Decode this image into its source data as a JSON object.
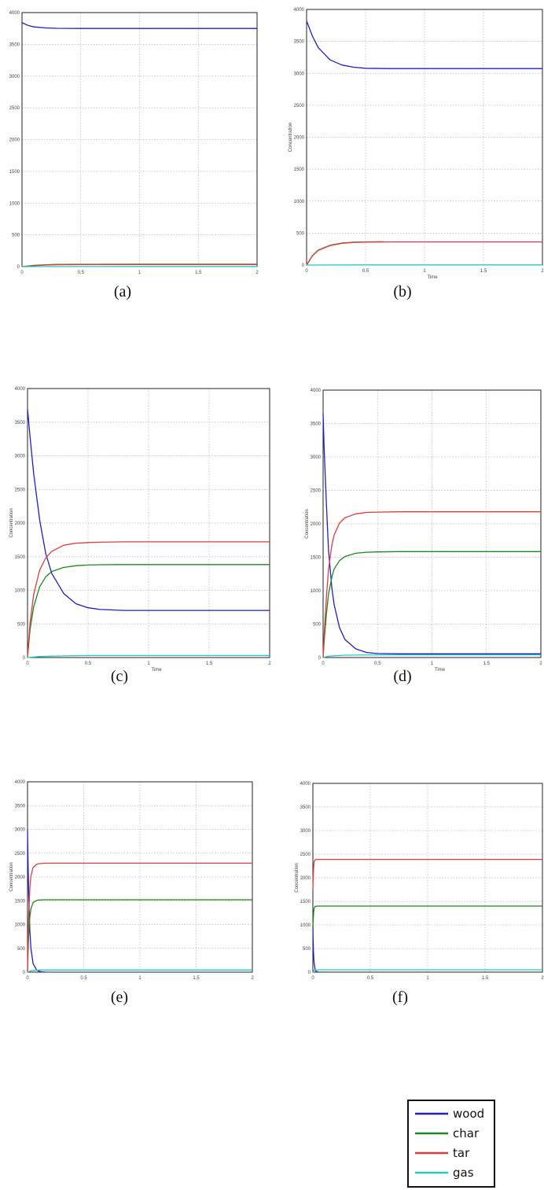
{
  "legend": [
    {
      "name": "wood",
      "color": "#1f1fc8"
    },
    {
      "name": "char",
      "color": "#1a8a1a"
    },
    {
      "name": "tar",
      "color": "#e03c3c"
    },
    {
      "name": "gas",
      "color": "#25c7c7"
    }
  ],
  "chart_data": [
    {
      "type": "line",
      "panel_label": "(a)",
      "xlabel": "",
      "ylabel": "",
      "xlim": [
        0,
        2
      ],
      "ylim": [
        0,
        4000
      ],
      "x_ticks": [
        "0",
        "0.5",
        "1",
        "1.5",
        "2"
      ],
      "y_ticks": [
        "0",
        "500",
        "1000",
        "1500",
        "2000",
        "2500",
        "3000",
        "3500",
        "4000"
      ],
      "grid": true,
      "series": [
        {
          "name": "wood",
          "x": [
            0,
            0.05,
            0.1,
            0.2,
            0.3,
            0.5,
            1,
            1.5,
            2
          ],
          "values": [
            3840,
            3800,
            3775,
            3758,
            3752,
            3750,
            3750,
            3750,
            3750
          ]
        },
        {
          "name": "char",
          "x": [
            0,
            0.1,
            0.2,
            0.3,
            0.5,
            1,
            1.5,
            2
          ],
          "values": [
            0,
            20,
            30,
            35,
            37,
            38,
            38,
            38
          ]
        },
        {
          "name": "tar",
          "x": [
            0,
            0.1,
            0.2,
            0.3,
            0.5,
            1,
            1.5,
            2
          ],
          "values": [
            0,
            15,
            25,
            30,
            33,
            34,
            34,
            34
          ]
        },
        {
          "name": "gas",
          "x": [
            0,
            0.5,
            1,
            1.5,
            2
          ],
          "values": [
            0,
            1,
            2,
            2,
            2
          ]
        }
      ]
    },
    {
      "type": "line",
      "panel_label": "(b)",
      "xlabel": "Time",
      "ylabel": "Concentration",
      "xlim": [
        0,
        2
      ],
      "ylim": [
        0,
        4000
      ],
      "x_ticks": [
        "0",
        "0.5",
        "1",
        "1.5",
        "2"
      ],
      "y_ticks": [
        "0",
        "500",
        "1000",
        "1500",
        "2000",
        "2500",
        "3000",
        "3500",
        "4000"
      ],
      "grid": true,
      "series": [
        {
          "name": "wood",
          "x": [
            0,
            0.05,
            0.1,
            0.2,
            0.3,
            0.4,
            0.5,
            0.7,
            1,
            1.5,
            2
          ],
          "values": [
            3820,
            3580,
            3400,
            3210,
            3130,
            3095,
            3080,
            3075,
            3075,
            3075,
            3075
          ]
        },
        {
          "name": "char",
          "x": [
            0,
            0.05,
            0.1,
            0.2,
            0.3,
            0.4,
            0.5,
            0.65
          ],
          "values": [
            0,
            150,
            235,
            310,
            345,
            358,
            362,
            365
          ]
        },
        {
          "name": "tar",
          "x": [
            0,
            0.05,
            0.1,
            0.2,
            0.3,
            0.4,
            0.5,
            0.7,
            1,
            1.5,
            2
          ],
          "values": [
            0,
            145,
            230,
            305,
            340,
            355,
            360,
            362,
            362,
            362,
            362
          ]
        },
        {
          "name": "gas",
          "x": [
            0,
            0.5,
            1,
            1.5,
            2
          ],
          "values": [
            0,
            2,
            3,
            3,
            3
          ]
        }
      ]
    },
    {
      "type": "line",
      "panel_label": "(c)",
      "xlabel": "Time",
      "ylabel": "Concentration",
      "xlim": [
        0,
        2
      ],
      "ylim": [
        0,
        4000
      ],
      "x_ticks": [
        "0",
        "0.5",
        "1",
        "1.5",
        "2"
      ],
      "y_ticks": [
        "0",
        "500",
        "1000",
        "1500",
        "2000",
        "2500",
        "3000",
        "3500",
        "4000"
      ],
      "grid": true,
      "series": [
        {
          "name": "wood",
          "x": [
            0,
            0.02,
            0.05,
            0.1,
            0.15,
            0.2,
            0.3,
            0.4,
            0.5,
            0.6,
            0.8,
            1,
            1.5,
            2
          ],
          "values": [
            3700,
            3300,
            2750,
            2050,
            1550,
            1250,
            950,
            800,
            740,
            715,
            700,
            700,
            700,
            700
          ]
        },
        {
          "name": "char",
          "x": [
            0,
            0.02,
            0.05,
            0.1,
            0.15,
            0.2,
            0.3,
            0.4,
            0.5,
            0.6,
            0.8,
            1,
            1.5,
            2
          ],
          "values": [
            0,
            400,
            750,
            1050,
            1200,
            1280,
            1340,
            1365,
            1375,
            1380,
            1382,
            1383,
            1383,
            1383
          ]
        },
        {
          "name": "tar",
          "x": [
            0,
            0.02,
            0.05,
            0.1,
            0.15,
            0.2,
            0.3,
            0.4,
            0.5,
            0.6,
            0.8,
            1,
            1.5,
            2
          ],
          "values": [
            0,
            500,
            930,
            1300,
            1480,
            1580,
            1670,
            1700,
            1710,
            1715,
            1720,
            1720,
            1720,
            1720
          ]
        },
        {
          "name": "gas",
          "x": [
            0,
            0.1,
            0.3,
            0.5,
            1,
            1.5,
            2
          ],
          "values": [
            0,
            15,
            25,
            30,
            30,
            30,
            30
          ]
        }
      ]
    },
    {
      "type": "line",
      "panel_label": "(d)",
      "xlabel": "Time",
      "ylabel": "Concentration",
      "xlim": [
        0,
        2
      ],
      "ylim": [
        0,
        4000
      ],
      "x_ticks": [
        "0",
        "0.5",
        "1",
        "1.5",
        "2"
      ],
      "y_ticks": [
        "0",
        "500",
        "1000",
        "1500",
        "2000",
        "2500",
        "3000",
        "3500",
        "4000"
      ],
      "grid": true,
      "series": [
        {
          "name": "wood",
          "x": [
            0,
            0.01,
            0.03,
            0.05,
            0.08,
            0.1,
            0.15,
            0.2,
            0.3,
            0.4,
            0.5,
            0.7,
            1,
            1.5,
            2
          ],
          "values": [
            3650,
            3100,
            2300,
            1600,
            1050,
            800,
            450,
            270,
            130,
            75,
            60,
            55,
            55,
            55,
            55
          ]
        },
        {
          "name": "char",
          "x": [
            0,
            0.01,
            0.03,
            0.05,
            0.08,
            0.1,
            0.15,
            0.2,
            0.3,
            0.4,
            0.5,
            0.7,
            1,
            1.5,
            2
          ],
          "values": [
            0,
            250,
            650,
            950,
            1200,
            1320,
            1450,
            1510,
            1560,
            1575,
            1580,
            1585,
            1585,
            1585,
            1585
          ]
        },
        {
          "name": "tar",
          "x": [
            0,
            0.01,
            0.03,
            0.05,
            0.08,
            0.1,
            0.15,
            0.2,
            0.3,
            0.4,
            0.5,
            0.7,
            1,
            1.5,
            2
          ],
          "values": [
            0,
            350,
            900,
            1320,
            1680,
            1830,
            2010,
            2090,
            2150,
            2170,
            2175,
            2180,
            2180,
            2180,
            2180
          ]
        },
        {
          "name": "gas",
          "x": [
            0,
            0.05,
            0.2,
            0.5,
            1,
            1.5,
            2
          ],
          "values": [
            0,
            20,
            35,
            40,
            40,
            40,
            40
          ]
        }
      ]
    },
    {
      "type": "line",
      "panel_label": "(e)",
      "xlabel": "",
      "ylabel": "Concentration",
      "xlim": [
        0,
        2
      ],
      "ylim": [
        0,
        4000
      ],
      "x_ticks": [
        "0",
        "0.5",
        "1",
        "1.5",
        "2"
      ],
      "y_ticks": [
        "0",
        "500",
        "1000",
        "1500",
        "2000",
        "2500",
        "3000",
        "3500",
        "4000"
      ],
      "grid": true,
      "series": [
        {
          "name": "wood",
          "x": [
            0,
            0.005,
            0.01,
            0.02,
            0.03,
            0.05,
            0.08,
            0.1,
            0.13,
            0.16
          ],
          "values": [
            3000,
            2300,
            1700,
            900,
            500,
            180,
            50,
            20,
            5,
            0
          ]
        },
        {
          "name": "char",
          "x": [
            0,
            0.005,
            0.01,
            0.02,
            0.03,
            0.05,
            0.08,
            0.1,
            0.15,
            0.5,
            1,
            1.5,
            2
          ],
          "values": [
            0,
            400,
            750,
            1150,
            1330,
            1460,
            1505,
            1515,
            1520,
            1520,
            1520,
            1520,
            1520
          ]
        },
        {
          "name": "tar",
          "x": [
            0,
            0.005,
            0.01,
            0.02,
            0.03,
            0.05,
            0.08,
            0.1,
            0.15,
            0.5,
            1,
            1.5,
            2
          ],
          "values": [
            0,
            650,
            1150,
            1750,
            2020,
            2200,
            2265,
            2280,
            2290,
            2290,
            2290,
            2290,
            2290
          ]
        },
        {
          "name": "gas",
          "x": [
            0,
            0.03,
            0.1,
            0.5,
            1,
            1.5,
            2
          ],
          "values": [
            0,
            30,
            45,
            45,
            45,
            45,
            45
          ]
        }
      ]
    },
    {
      "type": "line",
      "panel_label": "(f)",
      "xlabel": "",
      "ylabel": "Concentration",
      "xlim": [
        0,
        2
      ],
      "ylim": [
        0,
        4000
      ],
      "x_ticks": [
        "0",
        "0.5",
        "1",
        "1.5",
        "2"
      ],
      "y_ticks": [
        "0",
        "500",
        "1000",
        "1500",
        "2000",
        "2500",
        "3000",
        "3500",
        "4000"
      ],
      "grid": true,
      "series": [
        {
          "name": "wood",
          "x": [
            0,
            0.002,
            0.005,
            0.01,
            0.02,
            0.03,
            0.05
          ],
          "values": [
            1000,
            700,
            450,
            200,
            50,
            10,
            0
          ]
        },
        {
          "name": "char",
          "x": [
            0,
            0.003,
            0.006,
            0.01,
            0.02,
            0.05,
            0.5,
            1,
            1.5,
            2
          ],
          "values": [
            950,
            1100,
            1250,
            1350,
            1395,
            1400,
            1400,
            1400,
            1400,
            1400
          ]
        },
        {
          "name": "tar",
          "x": [
            0,
            0.003,
            0.006,
            0.01,
            0.02,
            0.05,
            0.5,
            1,
            1.5,
            2
          ],
          "values": [
            1750,
            2000,
            2200,
            2330,
            2385,
            2390,
            2390,
            2390,
            2390,
            2390
          ]
        },
        {
          "name": "gas",
          "x": [
            0,
            0.01,
            0.05,
            0.5,
            1,
            1.5,
            2
          ],
          "values": [
            0,
            40,
            50,
            50,
            50,
            50,
            50
          ]
        }
      ]
    }
  ]
}
